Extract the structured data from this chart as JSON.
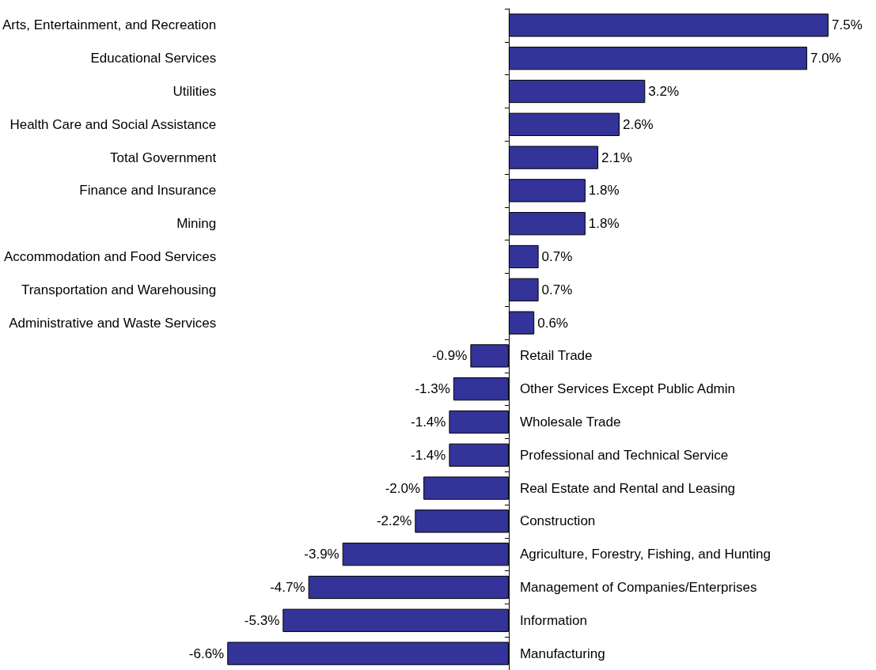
{
  "chart_data": {
    "type": "bar",
    "orientation": "horizontal",
    "categories": [
      "Arts, Entertainment, and Recreation",
      "Educational Services",
      "Utilities",
      "Health Care and Social Assistance",
      "Total Government",
      "Finance and Insurance",
      "Mining",
      "Accommodation and Food Services",
      "Transportation and Warehousing",
      "Administrative and Waste Services",
      "Retail Trade",
      "Other Services Except Public Admin",
      "Wholesale Trade",
      "Professional and Technical Service",
      "Real Estate and Rental and Leasing",
      "Construction",
      "Agriculture, Forestry, Fishing, and Hunting",
      "Management of Companies/Enterprises",
      "Information",
      "Manufacturing"
    ],
    "values": [
      7.5,
      7.0,
      3.2,
      2.6,
      2.1,
      1.8,
      1.8,
      0.7,
      0.7,
      0.6,
      -0.9,
      -1.3,
      -1.4,
      -1.4,
      -2.0,
      -2.2,
      -3.9,
      -4.7,
      -5.3,
      -6.6
    ],
    "value_labels": [
      "7.5%",
      "7.0%",
      "3.2%",
      "2.6%",
      "2.1%",
      "1.8%",
      "1.8%",
      "0.7%",
      "0.7%",
      "0.6%",
      "-0.9%",
      "-1.3%",
      "-1.4%",
      "-1.4%",
      "-2.0%",
      "-2.2%",
      "-3.9%",
      "-4.7%",
      "-5.3%",
      "-6.6%"
    ],
    "color": "#333399",
    "grid": false
  }
}
